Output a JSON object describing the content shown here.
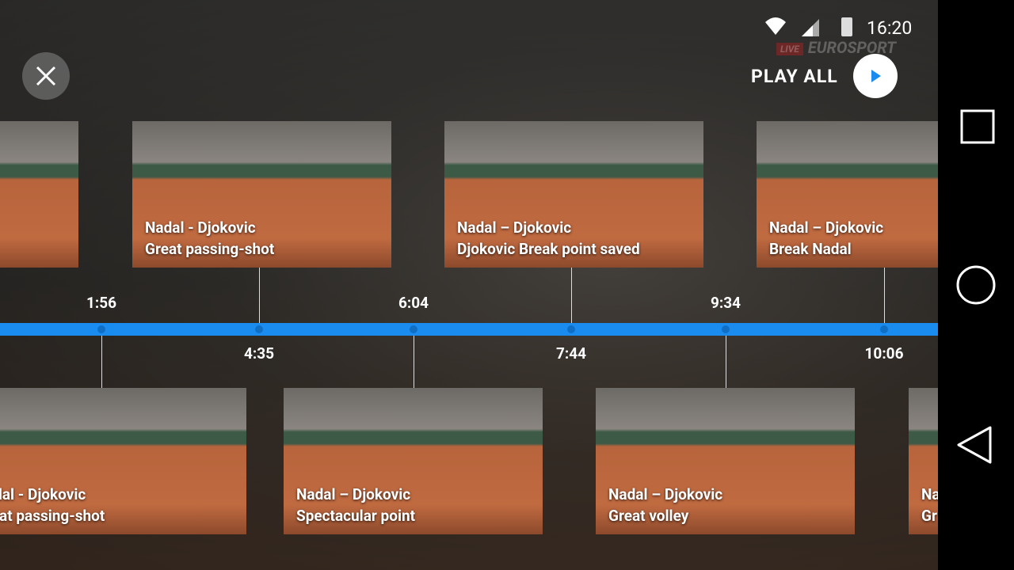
{
  "status_bar": {
    "time": "16:20"
  },
  "header": {
    "play_all": "PLAY ALL"
  },
  "logo": {
    "live": "LIVE",
    "brand": "EUROSPORT"
  },
  "timeline": {
    "markers": [
      "1:56",
      "4:35",
      "6:04",
      "7:44",
      "9:34",
      "10:06"
    ]
  },
  "clips": {
    "top": [
      {
        "line1": "Nadal - Djokovic",
        "line2": "Great passing-shot"
      },
      {
        "line1": "Nadal – Djokovic",
        "line2": "Djokovic Break point saved"
      },
      {
        "line1": "Nadal – Djokovic",
        "line2": "Break Nadal"
      }
    ],
    "bottom": [
      {
        "line1": "adal - Djokovic",
        "line2": "reat passing-shot"
      },
      {
        "line1": "Nadal – Djokovic",
        "line2": "Spectacular point"
      },
      {
        "line1": "Nadal – Djokovic",
        "line2": "Great volley"
      },
      {
        "line1": "Na",
        "line2": "Gr"
      }
    ]
  }
}
